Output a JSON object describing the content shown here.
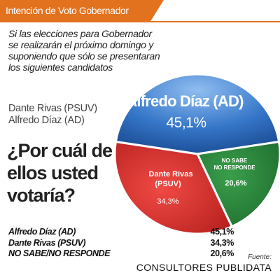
{
  "header": {
    "title": "Intención de Voto Gobernador"
  },
  "question_text": "Si las elecciones para Gobernador se realizarán el próximo domingo y suponiendo que sólo se presentaran  los siguientes candidatos",
  "candidates": [
    "Dante Rivas (PSUV)",
    "Alfredo Díaz (AD)"
  ],
  "big_question": "¿Por cuál de ellos usted votaría?",
  "results_table": [
    {
      "name": "Alfredo Díaz (AD)",
      "value": "45,1%"
    },
    {
      "name": "Dante Rivas (PSUV)",
      "value": "34,3%"
    },
    {
      "name": "NO SABE/NO RESPONDE",
      "value": "20,6%"
    }
  ],
  "source": {
    "label": "Fuente:",
    "name": "CONSULTORES PUBLIDATA"
  },
  "colors": {
    "accent": "#e3721f",
    "alfredo": "#2f72c4",
    "dante": "#d42a26",
    "nosabe": "#27803a"
  },
  "chart_data": {
    "type": "pie",
    "slices": [
      {
        "label": "Alfredo Díaz (AD)",
        "value": 45.1,
        "value_label": "45,1%",
        "color": "#2f72c4"
      },
      {
        "label": "NO SABE / NO RESPONDE",
        "value": 20.6,
        "value_label": "20,6%",
        "color": "#27803a"
      },
      {
        "label": "Dante Rivas (PSUV)",
        "value": 34.3,
        "value_label": "34,3%",
        "color": "#d42a26"
      }
    ]
  }
}
